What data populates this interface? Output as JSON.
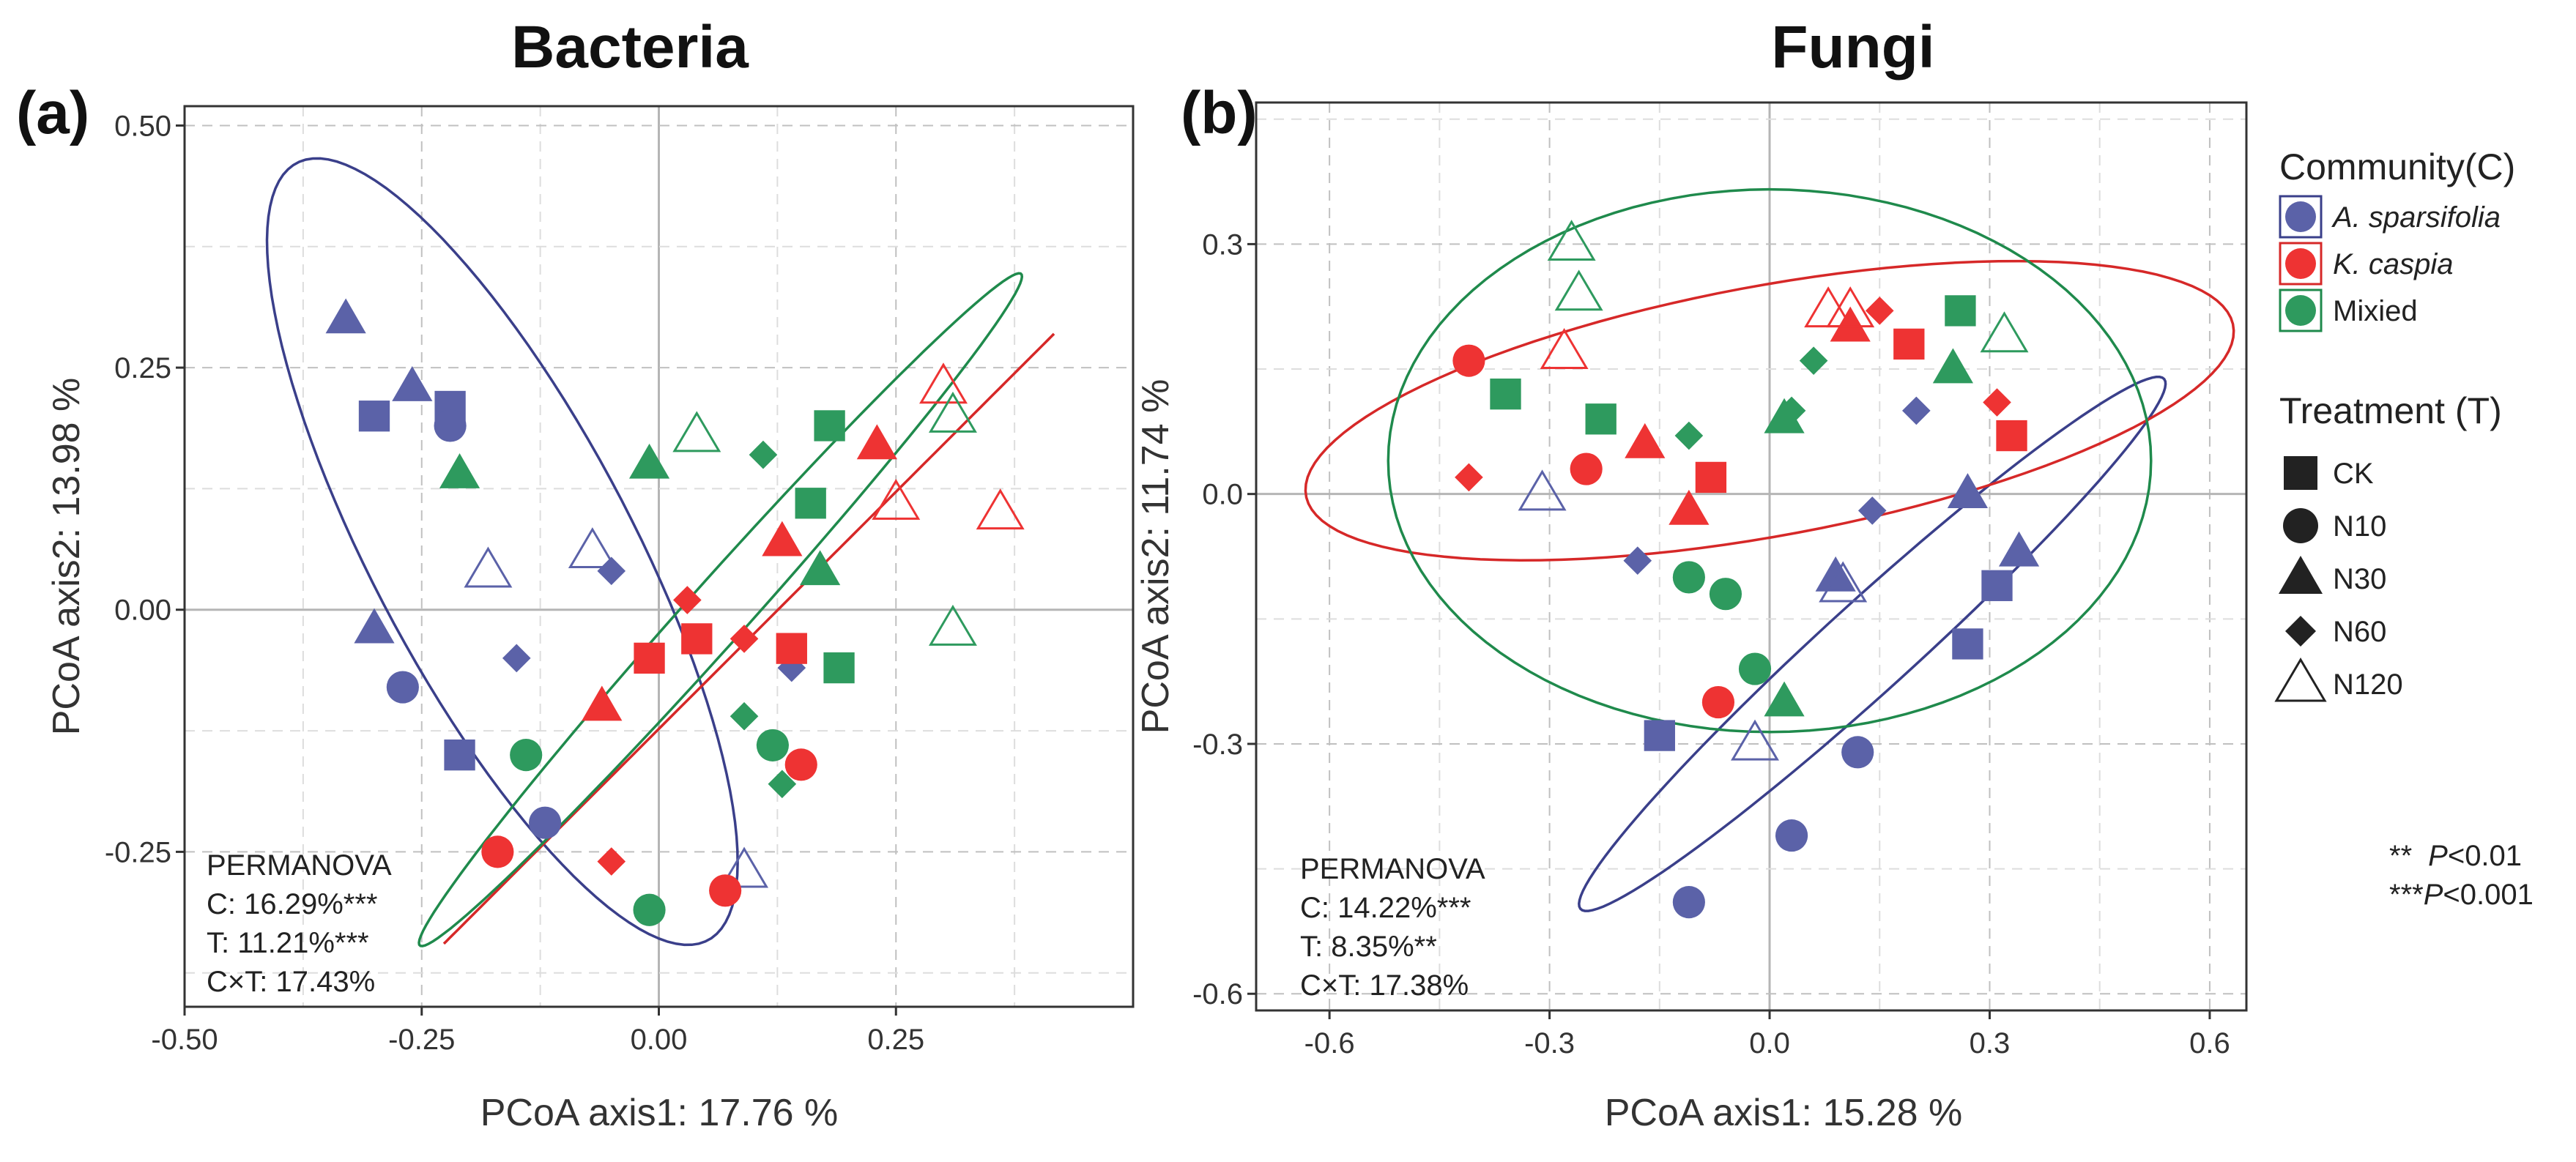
{
  "legend": {
    "community_title": "Community(C)",
    "community": [
      {
        "label": "A. sparsifolia",
        "italic": true,
        "color": "#5b62a8",
        "border": "#3a3f8a"
      },
      {
        "label": "K. caspia",
        "italic": true,
        "color": "#ee3333",
        "border": "#d62828"
      },
      {
        "label": "Mixied",
        "italic": false,
        "color": "#2e9a5e",
        "border": "#1f8a4c"
      }
    ],
    "treatment_title": "Treatment (T)",
    "treatment": [
      {
        "label": "CK",
        "shape": "square"
      },
      {
        "label": "N10",
        "shape": "circle"
      },
      {
        "label": "N30",
        "shape": "triangle"
      },
      {
        "label": "N60",
        "shape": "diamond"
      },
      {
        "label": "N120",
        "shape": "triangle-open"
      }
    ],
    "sig_line1_prefix": "**",
    "sig_line1_p": "P",
    "sig_line1_suffix": "<0.01",
    "sig_line2_prefix": "***",
    "sig_line2_p": "P",
    "sig_line2_suffix": "<0.001"
  },
  "chart_data": [
    {
      "panel": "(a)",
      "type": "scatter",
      "title": "Bacteria",
      "xlabel": "PCoA axis1:  17.76 %",
      "ylabel": "PCoA axis2:  13.98 %",
      "xlim": [
        -0.5,
        0.5
      ],
      "ylim": [
        -0.41,
        0.52
      ],
      "xticks": [
        -0.5,
        -0.25,
        0.0,
        0.25
      ],
      "xtick_labels": [
        "-0.50",
        "-0.25",
        "0.00",
        "0.25"
      ],
      "yticks": [
        -0.25,
        0.0,
        0.25,
        0.5
      ],
      "ytick_labels": [
        "-0.25",
        "0.00",
        "0.25",
        "0.50"
      ],
      "permanova": [
        "PERMANOVA",
        "C: 16.29%***",
        "T: 11.21%***",
        "C×T: 17.43%"
      ],
      "ellipses": [
        {
          "community": "A. sparsifolia",
          "cx": -0.165,
          "cy": 0.06,
          "rx": 0.44,
          "ry": 0.2,
          "angle_deg": -68
        },
        {
          "community": "K. caspia",
          "cx": 0.095,
          "cy": -0.03,
          "rx": 0.42,
          "ry": 0.175,
          "angle_deg": 45
        },
        {
          "community": "Mixied",
          "cx": 0.065,
          "cy": 0.0,
          "rx": 0.43,
          "ry": 0.205,
          "angle_deg": 50
        }
      ],
      "series": [
        {
          "community": "A. sparsifolia",
          "points": [
            {
              "x": -0.3,
              "y": 0.2,
              "t": "CK"
            },
            {
              "x": -0.22,
              "y": 0.21,
              "t": "CK"
            },
            {
              "x": -0.21,
              "y": -0.15,
              "t": "CK"
            },
            {
              "x": -0.22,
              "y": 0.19,
              "t": "N10"
            },
            {
              "x": -0.27,
              "y": -0.08,
              "t": "N10"
            },
            {
              "x": -0.12,
              "y": -0.22,
              "t": "N10"
            },
            {
              "x": -0.33,
              "y": 0.3,
              "t": "N30"
            },
            {
              "x": -0.26,
              "y": 0.23,
              "t": "N30"
            },
            {
              "x": -0.3,
              "y": -0.02,
              "t": "N30"
            },
            {
              "x": -0.05,
              "y": 0.04,
              "t": "N60"
            },
            {
              "x": -0.15,
              "y": -0.05,
              "t": "N60"
            },
            {
              "x": 0.14,
              "y": -0.06,
              "t": "N60"
            },
            {
              "x": -0.18,
              "y": 0.04,
              "t": "N120"
            },
            {
              "x": -0.07,
              "y": 0.06,
              "t": "N120"
            },
            {
              "x": 0.09,
              "y": -0.27,
              "t": "N120"
            }
          ]
        },
        {
          "community": "K. caspia",
          "points": [
            {
              "x": -0.01,
              "y": -0.05,
              "t": "CK"
            },
            {
              "x": 0.04,
              "y": -0.03,
              "t": "CK"
            },
            {
              "x": 0.14,
              "y": -0.04,
              "t": "CK"
            },
            {
              "x": -0.17,
              "y": -0.25,
              "t": "N10"
            },
            {
              "x": 0.07,
              "y": -0.29,
              "t": "N10"
            },
            {
              "x": 0.15,
              "y": -0.16,
              "t": "N10"
            },
            {
              "x": -0.06,
              "y": -0.1,
              "t": "N30"
            },
            {
              "x": 0.13,
              "y": 0.07,
              "t": "N30"
            },
            {
              "x": 0.23,
              "y": 0.17,
              "t": "N30"
            },
            {
              "x": 0.03,
              "y": 0.01,
              "t": "N60"
            },
            {
              "x": 0.09,
              "y": -0.03,
              "t": "N60"
            },
            {
              "x": -0.05,
              "y": -0.26,
              "t": "N60"
            },
            {
              "x": 0.25,
              "y": 0.11,
              "t": "N120"
            },
            {
              "x": 0.3,
              "y": 0.23,
              "t": "N120"
            },
            {
              "x": 0.36,
              "y": 0.1,
              "t": "N120"
            }
          ]
        },
        {
          "community": "Mixied",
          "points": [
            {
              "x": 0.16,
              "y": 0.11,
              "t": "CK"
            },
            {
              "x": 0.18,
              "y": 0.19,
              "t": "CK"
            },
            {
              "x": 0.19,
              "y": -0.06,
              "t": "CK"
            },
            {
              "x": -0.14,
              "y": -0.15,
              "t": "N10"
            },
            {
              "x": -0.01,
              "y": -0.31,
              "t": "N10"
            },
            {
              "x": 0.12,
              "y": -0.14,
              "t": "N10"
            },
            {
              "x": -0.21,
              "y": 0.14,
              "t": "N30"
            },
            {
              "x": -0.01,
              "y": 0.15,
              "t": "N30"
            },
            {
              "x": 0.17,
              "y": 0.04,
              "t": "N30"
            },
            {
              "x": 0.11,
              "y": 0.16,
              "t": "N60"
            },
            {
              "x": 0.09,
              "y": -0.11,
              "t": "N60"
            },
            {
              "x": 0.13,
              "y": -0.18,
              "t": "N60"
            },
            {
              "x": 0.04,
              "y": 0.18,
              "t": "N120"
            },
            {
              "x": 0.31,
              "y": 0.2,
              "t": "N120"
            },
            {
              "x": 0.31,
              "y": -0.02,
              "t": "N120"
            }
          ]
        }
      ]
    },
    {
      "panel": "(b)",
      "type": "scatter",
      "title": "Fungi",
      "xlabel": "PCoA axis1:  15.28 %",
      "ylabel": "PCoA axis2:  11.74 %",
      "xlim": [
        -0.7,
        0.65
      ],
      "ylim": [
        -0.62,
        0.47
      ],
      "xticks": [
        -0.6,
        -0.3,
        0.0,
        0.3,
        0.6
      ],
      "xtick_labels": [
        "-0.6",
        "-0.3",
        "0.0",
        "0.3",
        "0.6"
      ],
      "yticks": [
        -0.6,
        -0.3,
        0.0,
        0.3
      ],
      "ytick_labels": [
        "-0.6",
        "-0.3",
        "0.0",
        "0.3"
      ],
      "permanova": [
        "PERMANOVA",
        "C: 14.22%***",
        "T: 8.35%**",
        "C×T: 17.38%"
      ],
      "ellipses": [
        {
          "community": "A. sparsifolia",
          "cx": 0.14,
          "cy": -0.18,
          "rx": 0.45,
          "ry": 0.3,
          "angle_deg": 38
        },
        {
          "community": "K. caspia",
          "cx": 0.0,
          "cy": 0.1,
          "rx": 0.64,
          "ry": 0.18,
          "angle_deg": 9
        },
        {
          "community": "Mixied",
          "cx": 0.0,
          "cy": 0.04,
          "rx": 0.52,
          "ry": 0.37,
          "angle_deg": 0
        }
      ],
      "series": [
        {
          "community": "A. sparsifolia",
          "points": [
            {
              "x": -0.15,
              "y": -0.29,
              "t": "CK"
            },
            {
              "x": 0.27,
              "y": -0.18,
              "t": "CK"
            },
            {
              "x": 0.31,
              "y": -0.11,
              "t": "CK"
            },
            {
              "x": -0.11,
              "y": -0.49,
              "t": "N10"
            },
            {
              "x": 0.03,
              "y": -0.41,
              "t": "N10"
            },
            {
              "x": 0.12,
              "y": -0.31,
              "t": "N10"
            },
            {
              "x": 0.09,
              "y": -0.1,
              "t": "N30"
            },
            {
              "x": 0.27,
              "y": 0.0,
              "t": "N30"
            },
            {
              "x": 0.34,
              "y": -0.07,
              "t": "N30"
            },
            {
              "x": -0.18,
              "y": -0.08,
              "t": "N60"
            },
            {
              "x": 0.14,
              "y": -0.02,
              "t": "N60"
            },
            {
              "x": 0.2,
              "y": 0.1,
              "t": "N60"
            },
            {
              "x": -0.31,
              "y": 0.0,
              "t": "N120"
            },
            {
              "x": -0.02,
              "y": -0.3,
              "t": "N120"
            },
            {
              "x": 0.1,
              "y": -0.11,
              "t": "N120"
            }
          ]
        },
        {
          "community": "K. caspia",
          "points": [
            {
              "x": -0.08,
              "y": 0.02,
              "t": "CK"
            },
            {
              "x": 0.19,
              "y": 0.18,
              "t": "CK"
            },
            {
              "x": 0.33,
              "y": 0.07,
              "t": "CK"
            },
            {
              "x": -0.41,
              "y": 0.16,
              "t": "N10"
            },
            {
              "x": -0.25,
              "y": 0.03,
              "t": "N10"
            },
            {
              "x": -0.07,
              "y": -0.25,
              "t": "N10"
            },
            {
              "x": -0.17,
              "y": 0.06,
              "t": "N30"
            },
            {
              "x": -0.11,
              "y": -0.02,
              "t": "N30"
            },
            {
              "x": 0.11,
              "y": 0.2,
              "t": "N30"
            },
            {
              "x": -0.41,
              "y": 0.02,
              "t": "N60"
            },
            {
              "x": 0.15,
              "y": 0.22,
              "t": "N60"
            },
            {
              "x": 0.31,
              "y": 0.11,
              "t": "N60"
            },
            {
              "x": -0.28,
              "y": 0.17,
              "t": "N120"
            },
            {
              "x": 0.08,
              "y": 0.22,
              "t": "N120"
            },
            {
              "x": 0.11,
              "y": 0.22,
              "t": "N120"
            }
          ]
        },
        {
          "community": "Mixied",
          "points": [
            {
              "x": -0.36,
              "y": 0.12,
              "t": "CK"
            },
            {
              "x": -0.23,
              "y": 0.09,
              "t": "CK"
            },
            {
              "x": 0.26,
              "y": 0.22,
              "t": "CK"
            },
            {
              "x": -0.11,
              "y": -0.1,
              "t": "N10"
            },
            {
              "x": -0.06,
              "y": -0.12,
              "t": "N10"
            },
            {
              "x": -0.02,
              "y": -0.21,
              "t": "N10"
            },
            {
              "x": 0.02,
              "y": -0.25,
              "t": "N30"
            },
            {
              "x": 0.02,
              "y": 0.09,
              "t": "N30"
            },
            {
              "x": 0.25,
              "y": 0.15,
              "t": "N30"
            },
            {
              "x": -0.11,
              "y": 0.07,
              "t": "N60"
            },
            {
              "x": 0.03,
              "y": 0.1,
              "t": "N60"
            },
            {
              "x": 0.06,
              "y": 0.16,
              "t": "N60"
            },
            {
              "x": -0.27,
              "y": 0.3,
              "t": "N120"
            },
            {
              "x": -0.26,
              "y": 0.24,
              "t": "N120"
            },
            {
              "x": 0.32,
              "y": 0.19,
              "t": "N120"
            }
          ]
        }
      ]
    }
  ]
}
